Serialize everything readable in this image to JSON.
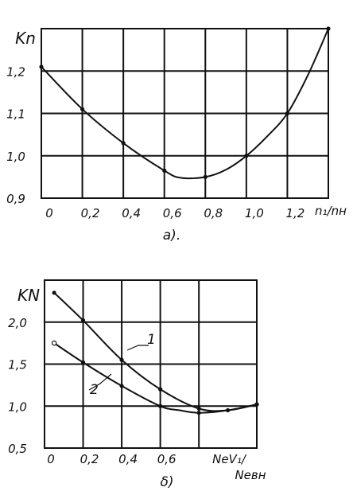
{
  "chart_data": [
    {
      "type": "line",
      "caption": "a).",
      "ylabel": "Kn",
      "xlabel": "n₁/nн",
      "xlim": [
        0,
        1.4
      ],
      "ylim": [
        0.9,
        1.3
      ],
      "x_ticks": [
        "0",
        "0,2",
        "0,4",
        "0,6",
        "0,8",
        "1,0",
        "1,2"
      ],
      "y_ticks": [
        "0,9",
        "1,0",
        "1,1",
        "1,2"
      ],
      "y_tick_values": [
        0.9,
        1.0,
        1.1,
        1.2
      ],
      "grid": true,
      "series": [
        {
          "points": [
            [
              0,
              1.21
            ],
            [
              0.2,
              1.11
            ],
            [
              0.4,
              1.03
            ],
            [
              0.6,
              0.965
            ],
            [
              0.8,
              0.95
            ],
            [
              1.0,
              1.0
            ],
            [
              1.2,
              1.1
            ],
            [
              1.4,
              1.3
            ]
          ],
          "curve": [
            [
              0,
              1.21
            ],
            [
              0.2,
              1.11
            ],
            [
              0.4,
              1.03
            ],
            [
              0.6,
              0.965
            ],
            [
              0.68,
              0.948
            ],
            [
              0.8,
              0.95
            ],
            [
              0.9,
              0.967
            ],
            [
              1.0,
              1.0
            ],
            [
              1.1,
              1.045
            ],
            [
              1.2,
              1.1
            ],
            [
              1.3,
              1.19
            ],
            [
              1.4,
              1.3
            ]
          ]
        }
      ]
    },
    {
      "type": "line",
      "caption": "δ)",
      "ylabel": "KN",
      "xlabel": "NeV₁/Neвн",
      "xlim": [
        0,
        1.1
      ],
      "ylim": [
        0.5,
        2.5
      ],
      "x_ticks": [
        "0",
        "0,2",
        "0,4",
        "0,6"
      ],
      "y_ticks": [
        "0,5",
        "1,0",
        "1,5",
        "2,0"
      ],
      "y_tick_values": [
        0.5,
        1.0,
        1.5,
        2.0
      ],
      "grid": true,
      "series": [
        {
          "name": "1",
          "points": [
            [
              0.05,
              2.35
            ],
            [
              0.2,
              2.02
            ],
            [
              0.4,
              1.55
            ],
            [
              0.6,
              1.2
            ],
            [
              0.8,
              0.97
            ],
            [
              1.1,
              1.02
            ]
          ],
          "curve": [
            [
              0.05,
              2.35
            ],
            [
              0.2,
              2.02
            ],
            [
              0.4,
              1.55
            ],
            [
              0.6,
              1.2
            ],
            [
              0.8,
              0.97
            ],
            [
              0.95,
              0.95
            ],
            [
              1.1,
              1.02
            ]
          ]
        },
        {
          "name": "2",
          "points": [
            [
              0.05,
              1.75
            ],
            [
              0.2,
              1.52
            ],
            [
              0.4,
              1.24
            ],
            [
              0.6,
              1.0
            ],
            [
              0.8,
              0.92
            ],
            [
              0.95,
              0.95
            ],
            [
              1.1,
              1.02
            ]
          ],
          "curve": [
            [
              0.05,
              1.75
            ],
            [
              0.2,
              1.52
            ],
            [
              0.4,
              1.24
            ],
            [
              0.6,
              1.0
            ],
            [
              0.7,
              0.95
            ],
            [
              0.8,
              0.92
            ],
            [
              0.95,
              0.95
            ],
            [
              1.1,
              1.02
            ]
          ]
        }
      ]
    }
  ]
}
